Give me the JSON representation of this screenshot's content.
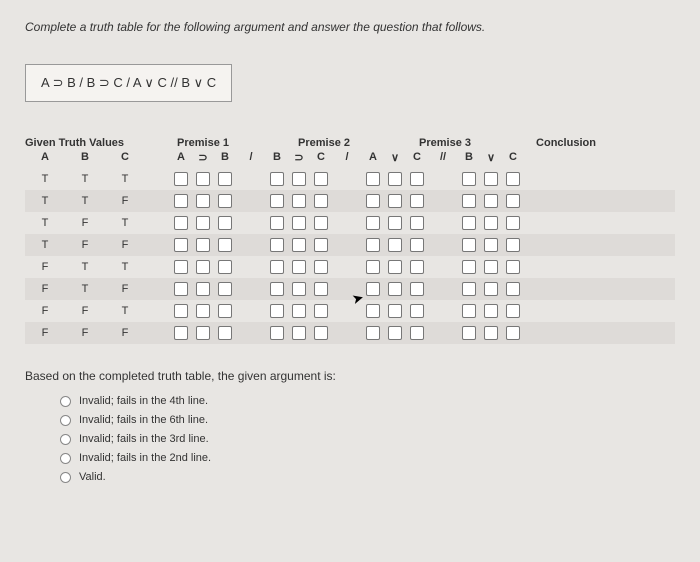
{
  "instruction": "Complete a truth table for the following argument and answer the question that follows.",
  "argument": "A ⊃ B / B ⊃ C / A ∨ C // B ∨ C",
  "table": {
    "group_headers": {
      "given": "Given Truth Values",
      "p1": "Premise 1",
      "p2": "Premise 2",
      "p3": "Premise 3",
      "concl": "Conclusion"
    },
    "sub": {
      "A": "A",
      "B": "B",
      "C": "C",
      "sup": "⊃",
      "slash": "/",
      "v": "∨",
      "dslash": "//"
    },
    "rows": [
      {
        "A": "T",
        "B": "T",
        "C": "T",
        "striped": false
      },
      {
        "A": "T",
        "B": "T",
        "C": "F",
        "striped": true
      },
      {
        "A": "T",
        "B": "F",
        "C": "T",
        "striped": false
      },
      {
        "A": "T",
        "B": "F",
        "C": "F",
        "striped": true
      },
      {
        "A": "F",
        "B": "T",
        "C": "T",
        "striped": false
      },
      {
        "A": "F",
        "B": "T",
        "C": "F",
        "striped": true
      },
      {
        "A": "F",
        "B": "F",
        "C": "T",
        "striped": false
      },
      {
        "A": "F",
        "B": "F",
        "C": "F",
        "striped": true
      }
    ]
  },
  "question": "Based on the completed truth table, the given argument is:",
  "options": [
    "Invalid; fails in the 4th line.",
    "Invalid; fails in the 6th line.",
    "Invalid; fails in the 3rd line.",
    "Invalid; fails in the 2nd line.",
    "Valid."
  ],
  "colors": {
    "bg": "#e8e6e3",
    "stripe": "#dedbd8",
    "box": "#f5f3f0",
    "border": "#999"
  }
}
